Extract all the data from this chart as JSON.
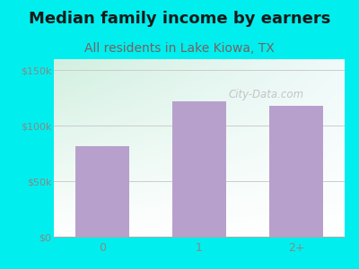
{
  "title": "Median family income by earners",
  "subtitle": "All residents in Lake Kiowa, TX",
  "categories": [
    "0",
    "1",
    "2+"
  ],
  "values": [
    82000,
    122000,
    118000
  ],
  "bar_color": "#b8a0cc",
  "title_fontsize": 13,
  "subtitle_fontsize": 10,
  "subtitle_color": "#7a6060",
  "title_color": "#1a1a1a",
  "background_color": "#00EEEE",
  "yticks": [
    0,
    50000,
    100000,
    150000
  ],
  "ytick_labels": [
    "$0",
    "$50k",
    "$100k",
    "$150k"
  ],
  "ylim": [
    0,
    160000
  ],
  "watermark": "City-Data.com",
  "watermark_color": "#bbbbbb",
  "tick_color": "#888888",
  "grid_color": "#cccccc"
}
